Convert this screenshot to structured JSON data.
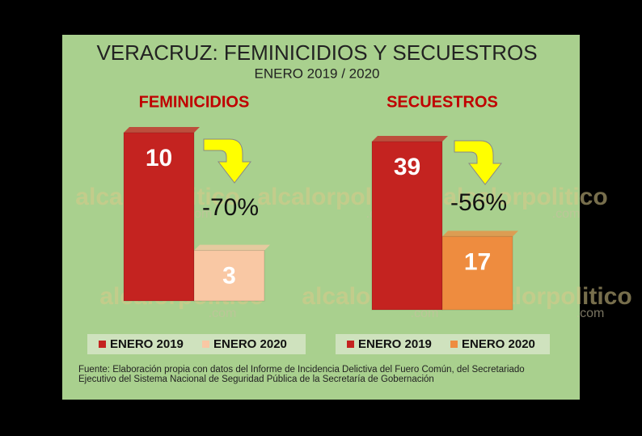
{
  "header": {
    "title": "VERACRUZ: FEMINICIDIOS Y SECUESTROS",
    "subtitle": "ENERO 2019 / 2020"
  },
  "chart_data": [
    {
      "type": "bar",
      "title": "FEMINICIDIOS",
      "annotation": "-70%",
      "series": [
        {
          "name": "ENERO 2019",
          "color": "#c42320",
          "values": [
            10
          ]
        },
        {
          "name": "ENERO 2020",
          "color": "#f9c8a4",
          "values": [
            3
          ]
        }
      ]
    },
    {
      "type": "bar",
      "title": "SECUESTROS",
      "annotation": "-56%",
      "series": [
        {
          "name": "ENERO 2019",
          "color": "#c42320",
          "values": [
            39
          ]
        },
        {
          "name": "ENERO 2020",
          "color": "#ee8c3f",
          "values": [
            17
          ]
        }
      ]
    }
  ],
  "watermark": {
    "name": "alcalorpolitico",
    "domain": ".com"
  },
  "source": [
    "Fuente: Elaboración propia con datos del Informe de Incidencia Delictiva del Fuero Común, del Secretariado",
    "Ejecutivo del Sistema Nacional de Seguridad Pública de la Secretaría de Gobernación"
  ]
}
